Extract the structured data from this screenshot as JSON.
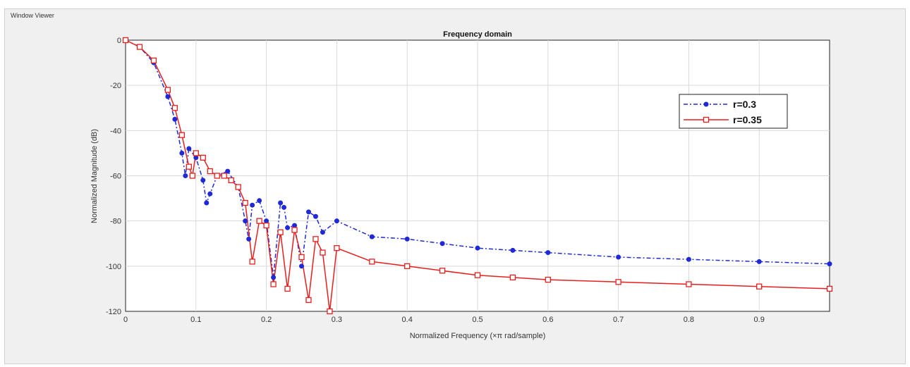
{
  "window": {
    "title": "Window Viewer"
  },
  "colors": {
    "series_1": "#1f2ad6",
    "series_2": "#e81e1e",
    "grid": "#d9d9d9"
  },
  "chart_data": {
    "type": "line",
    "title": "Frequency domain",
    "xlabel": "Normalized Frequency  (×π rad/sample)",
    "ylabel": "Normalized Magnitude (dB)",
    "xlim": [
      0,
      1
    ],
    "ylim": [
      -120,
      0
    ],
    "xticks": [
      0,
      0.1,
      0.2,
      0.3,
      0.4,
      0.5,
      0.6,
      0.7,
      0.8,
      0.9
    ],
    "xtick_labels": [
      "0",
      "0.1",
      "0.2",
      "0.3",
      "0.4",
      "0.5",
      "0.6",
      "0.7",
      "0.8",
      "0.9"
    ],
    "yticks": [
      0,
      -20,
      -40,
      -60,
      -80,
      -100,
      -120
    ],
    "ytick_labels": [
      "0",
      "-20",
      "-40",
      "-60",
      "-80",
      "-100",
      "-120"
    ],
    "grid": true,
    "legend_position": "top-right",
    "series": [
      {
        "name": "r=0.3",
        "style": "dash-dot line with filled circle markers",
        "x": [
          0,
          0.02,
          0.04,
          0.06,
          0.07,
          0.08,
          0.085,
          0.09,
          0.1,
          0.11,
          0.115,
          0.12,
          0.13,
          0.145,
          0.16,
          0.17,
          0.175,
          0.18,
          0.19,
          0.2,
          0.21,
          0.22,
          0.225,
          0.23,
          0.24,
          0.25,
          0.26,
          0.27,
          0.28,
          0.3,
          0.35,
          0.4,
          0.45,
          0.5,
          0.55,
          0.6,
          0.7,
          0.8,
          0.9,
          1.0
        ],
        "y": [
          0,
          -3,
          -10,
          -25,
          -35,
          -50,
          -60,
          -48,
          -52,
          -62,
          -72,
          -68,
          -60,
          -58,
          -65,
          -80,
          -88,
          -73,
          -71,
          -80,
          -105,
          -72,
          -74,
          -83,
          -82,
          -100,
          -76,
          -78,
          -85,
          -80,
          -87,
          -88,
          -90,
          -92,
          -93,
          -94,
          -96,
          -97,
          -98,
          -99
        ]
      },
      {
        "name": "r=0.35",
        "style": "solid line with open square markers",
        "x": [
          0,
          0.02,
          0.04,
          0.06,
          0.07,
          0.08,
          0.09,
          0.095,
          0.1,
          0.11,
          0.12,
          0.13,
          0.14,
          0.15,
          0.16,
          0.17,
          0.18,
          0.19,
          0.2,
          0.21,
          0.22,
          0.23,
          0.24,
          0.25,
          0.26,
          0.27,
          0.28,
          0.29,
          0.3,
          0.35,
          0.4,
          0.45,
          0.5,
          0.55,
          0.6,
          0.7,
          0.8,
          0.9,
          1.0
        ],
        "y": [
          0,
          -3,
          -9,
          -22,
          -30,
          -42,
          -56,
          -60,
          -50,
          -52,
          -58,
          -60,
          -60,
          -62,
          -65,
          -72,
          -98,
          -80,
          -82,
          -108,
          -85,
          -110,
          -84,
          -96,
          -115,
          -88,
          -94,
          -120,
          -92,
          -98,
          -100,
          -102,
          -104,
          -105,
          -106,
          -107,
          -108,
          -109,
          -110
        ]
      }
    ]
  }
}
